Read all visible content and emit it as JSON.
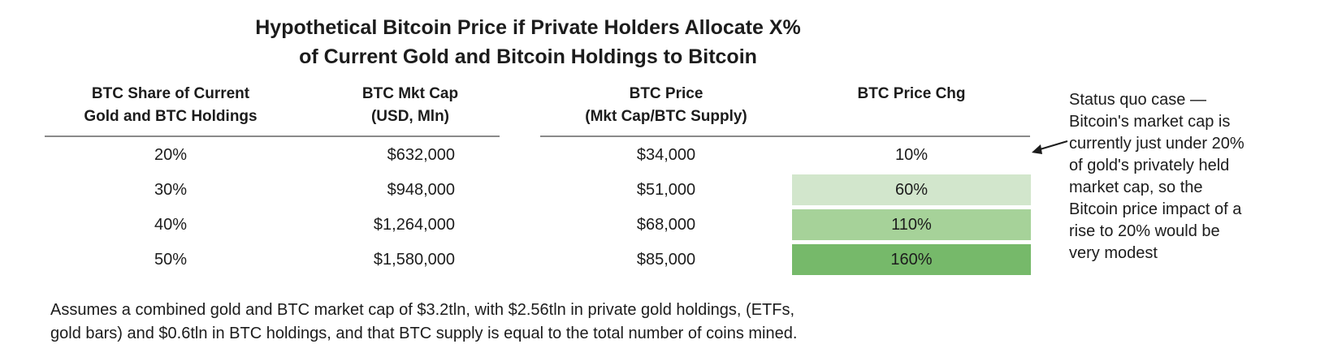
{
  "chart_data": {
    "type": "table",
    "title_lines": [
      "Hypothetical Bitcoin Price if Private Holders Allocate X%",
      "of Current Gold and Bitcoin Holdings to Bitcoin"
    ],
    "headers": [
      [
        "BTC Share of Current",
        "Gold and BTC Holdings"
      ],
      [
        "BTC Mkt Cap",
        "(USD, Mln)"
      ],
      [
        "BTC Price",
        "(Mkt Cap/BTC Supply)"
      ],
      [
        "BTC Price Chg"
      ]
    ],
    "rows": [
      {
        "share": "20%",
        "mkt_cap": "$632,000",
        "price": "$34,000",
        "chg": "10%",
        "chg_value": 10
      },
      {
        "share": "30%",
        "mkt_cap": "$948,000",
        "price": "$51,000",
        "chg": "60%",
        "chg_value": 60
      },
      {
        "share": "40%",
        "mkt_cap": "$1,264,000",
        "price": "$68,000",
        "chg": "110%",
        "chg_value": 110
      },
      {
        "share": "50%",
        "mkt_cap": "$1,580,000",
        "price": "$85,000",
        "chg": "160%",
        "chg_value": 160
      }
    ],
    "heat_colors": [
      "#ffffff",
      "#d2e6cc",
      "#a6d299",
      "#76b96a"
    ],
    "annotation_lines": [
      "Status quo case —",
      "Bitcoin's market cap is",
      "currently just under 20%",
      "of gold's privately held",
      "market cap, so the",
      "Bitcoin price impact of a",
      "rise to 20% would be",
      "very modest"
    ],
    "footnote_lines": [
      "Assumes a combined gold and BTC market cap of $3.2tln, with $2.56tln in private gold holdings, (ETFs,",
      "gold bars) and $0.6tln in BTC holdings, and that BTC supply is equal to the total number of coins mined."
    ]
  }
}
